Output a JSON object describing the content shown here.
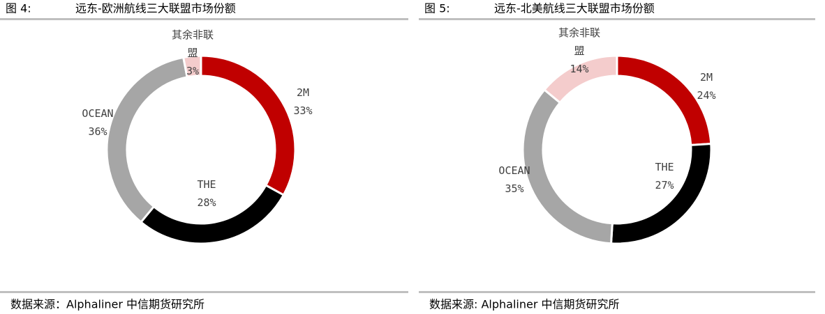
{
  "chart_data": [
    {
      "type": "donut",
      "figure_label": "图 4:",
      "title": "远东-欧洲航线三大联盟市场份额",
      "categories": [
        "2M",
        "THE",
        "OCEAN",
        "其余非联盟"
      ],
      "values": [
        33,
        28,
        36,
        3
      ],
      "value_labels": [
        "33%",
        "28%",
        "36%",
        "3%"
      ],
      "colors": [
        "#c00000",
        "#000000",
        "#a6a6a6",
        "#f4cccc"
      ],
      "source": "数据来源：Alphaliner 中信期货研究所"
    },
    {
      "type": "donut",
      "figure_label": "图 5:",
      "title": "远东-北美航线三大联盟市场份额",
      "categories": [
        "2M",
        "THE",
        "OCEAN",
        "其余非联盟"
      ],
      "values": [
        24,
        27,
        35,
        14
      ],
      "value_labels": [
        "24%",
        "27%",
        "35%",
        "14%"
      ],
      "colors": [
        "#c00000",
        "#000000",
        "#a6a6a6",
        "#f4cccc"
      ],
      "source": "数据来源: Alphaliner 中信期货研究所"
    }
  ]
}
